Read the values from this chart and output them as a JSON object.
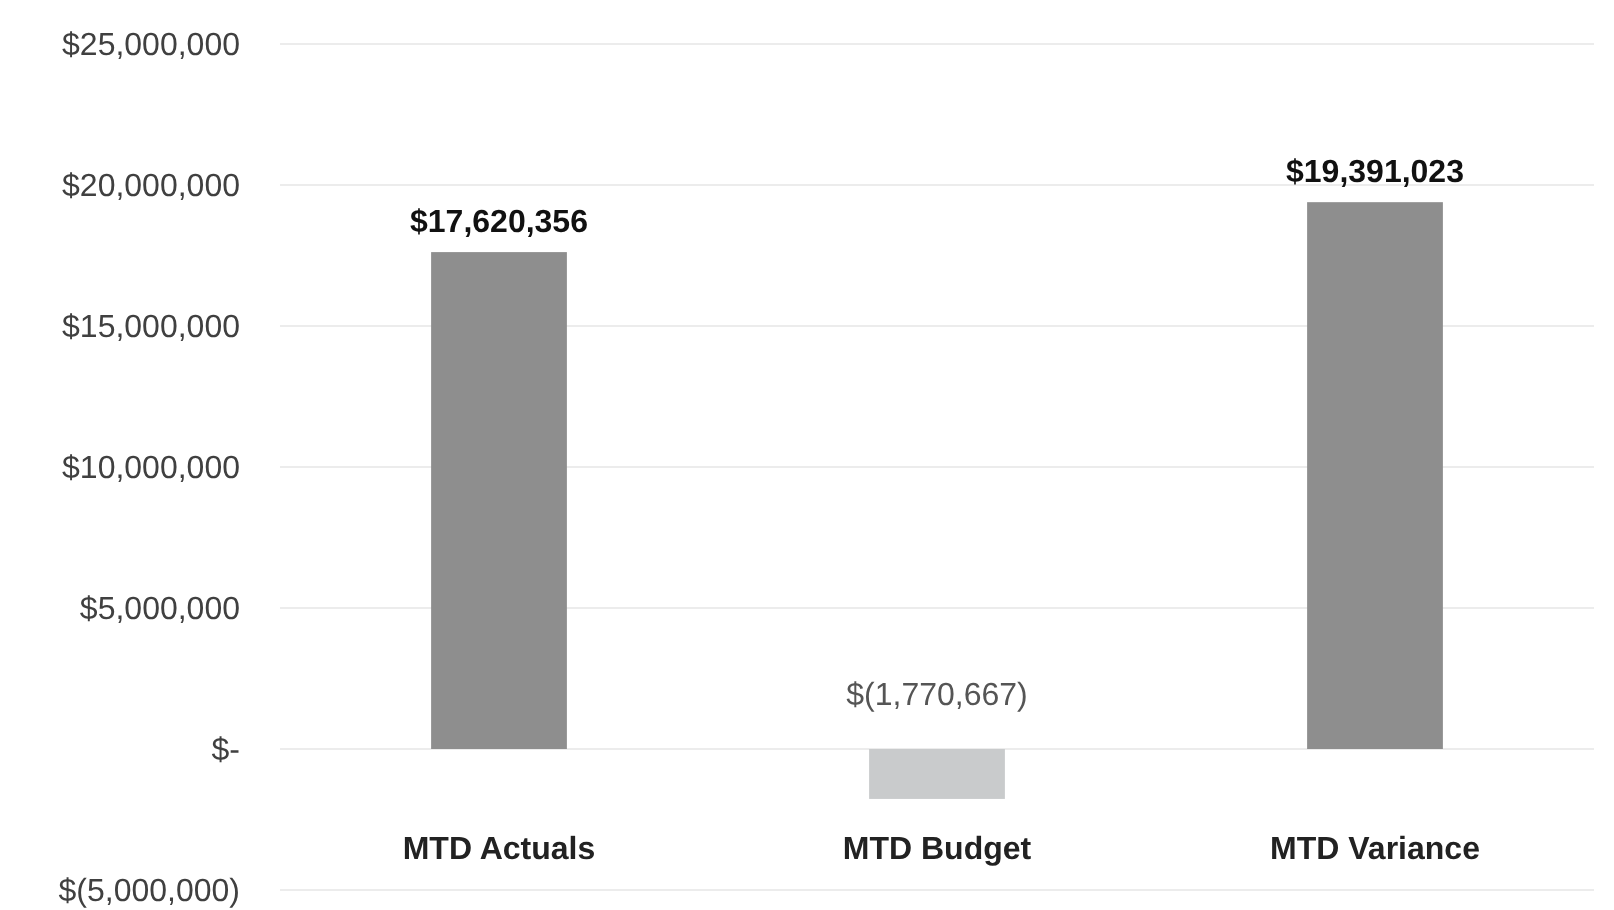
{
  "chart_data": {
    "type": "bar",
    "categories": [
      "MTD Actuals",
      "MTD Budget",
      "MTD Variance"
    ],
    "values": [
      17620356,
      -1770667,
      19391023
    ],
    "colors": [
      "#8e8e8e",
      "#c9cbcc",
      "#8e8e8e"
    ],
    "value_labels": [
      "$17,620,356",
      "$(1,770,667)",
      "$19,391,023"
    ],
    "ylim": [
      -5000000,
      25000000
    ],
    "yticks": [
      {
        "value": -5000000,
        "label": "$(5,000,000)"
      },
      {
        "value": 0,
        "label": "$-"
      },
      {
        "value": 5000000,
        "label": "$5,000,000"
      },
      {
        "value": 10000000,
        "label": "$10,000,000"
      },
      {
        "value": 15000000,
        "label": "$15,000,000"
      },
      {
        "value": 20000000,
        "label": "$20,000,000"
      },
      {
        "value": 25000000,
        "label": "$25,000,000"
      }
    ],
    "grid": "y"
  }
}
